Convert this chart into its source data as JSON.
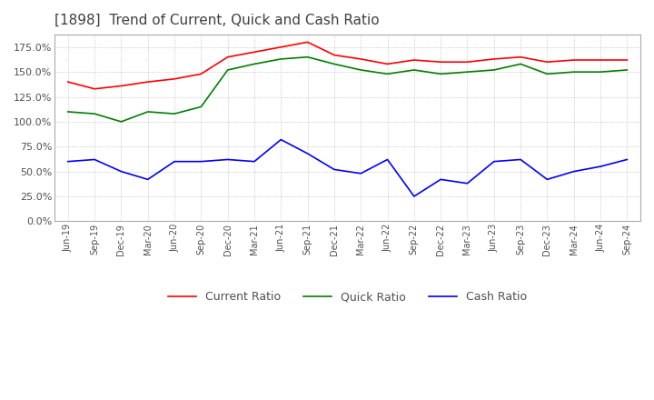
{
  "title": "[1898]  Trend of Current, Quick and Cash Ratio",
  "title_color": "#404040",
  "title_fontsize": 11,
  "background_color": "#ffffff",
  "plot_background_color": "#ffffff",
  "grid_color": "#aaaaaa",
  "x_labels": [
    "Jun-19",
    "Sep-19",
    "Dec-19",
    "Mar-20",
    "Jun-20",
    "Sep-20",
    "Dec-20",
    "Mar-21",
    "Jun-21",
    "Sep-21",
    "Dec-21",
    "Mar-22",
    "Jun-22",
    "Sep-22",
    "Dec-22",
    "Mar-23",
    "Jun-23",
    "Sep-23",
    "Dec-23",
    "Mar-24",
    "Jun-24",
    "Sep-24"
  ],
  "current_ratio": [
    140,
    133,
    136,
    140,
    143,
    148,
    165,
    170,
    175,
    180,
    167,
    163,
    158,
    162,
    160,
    160,
    163,
    165,
    160,
    162,
    162,
    162
  ],
  "quick_ratio": [
    110,
    108,
    100,
    110,
    108,
    115,
    152,
    158,
    163,
    165,
    158,
    152,
    148,
    152,
    148,
    150,
    152,
    158,
    148,
    150,
    150,
    152
  ],
  "cash_ratio": [
    60,
    62,
    50,
    42,
    60,
    60,
    62,
    60,
    82,
    68,
    52,
    48,
    62,
    25,
    42,
    38,
    60,
    62,
    42,
    50,
    55,
    62
  ],
  "current_color": "#ff0000",
  "quick_color": "#008000",
  "cash_color": "#0000ff",
  "ylim": [
    0,
    187.5
  ],
  "yticks": [
    0,
    25,
    50,
    75,
    100,
    125,
    150,
    175
  ],
  "legend_labels": [
    "Current Ratio",
    "Quick Ratio",
    "Cash Ratio"
  ]
}
